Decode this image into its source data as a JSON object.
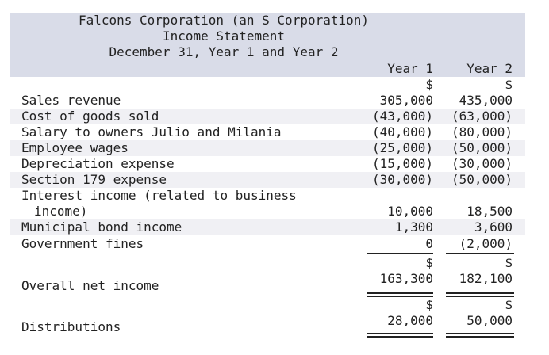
{
  "header": {
    "title_line1": "Falcons Corporation (an S Corporation)",
    "title_line2": "Income Statement",
    "title_line3": "December 31, Year 1 and Year 2"
  },
  "columns": {
    "year1": "Year 1",
    "year2": "Year 2",
    "currency": "$"
  },
  "rows": [
    {
      "label": "Sales revenue",
      "year1": "305,000",
      "year2": "435,000"
    },
    {
      "label": "Cost of goods sold",
      "year1": "(43,000)",
      "year2": "(63,000)"
    },
    {
      "label": "Salary to owners Julio and Milania",
      "year1": "(40,000)",
      "year2": "(80,000)"
    },
    {
      "label": "Employee wages",
      "year1": "(25,000)",
      "year2": "(50,000)"
    },
    {
      "label": "Depreciation expense",
      "year1": "(15,000)",
      "year2": "(30,000)"
    },
    {
      "label": "Section 179 expense",
      "year1": "(30,000)",
      "year2": "(50,000)"
    },
    {
      "label": "Interest income (related to business",
      "label_cont": "income)",
      "year1": "10,000",
      "year2": "18,500"
    },
    {
      "label": "Municipal bond income",
      "year1": "1,300",
      "year2": "3,600"
    },
    {
      "label": "Government fines",
      "year1": "0",
      "year2": "(2,000)"
    }
  ],
  "totals": {
    "net_income": {
      "label": "Overall net income",
      "year1": "163,300",
      "year2": "182,100"
    },
    "distributions": {
      "label": "Distributions",
      "year1": "28,000",
      "year2": "50,000"
    }
  }
}
